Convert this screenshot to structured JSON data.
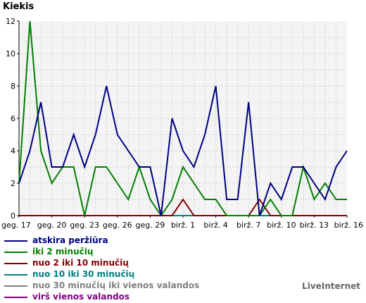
{
  "chart_data": {
    "type": "line",
    "title": "Kiekis",
    "xlabel": "",
    "ylabel": "Kiekis",
    "ylim": [
      0,
      12
    ],
    "yticks": [
      "0",
      "2",
      "4",
      "6",
      "8",
      "10",
      "12"
    ],
    "xtick_labels": [
      {
        "index": 0,
        "label": "geg. 17"
      },
      {
        "index": 3,
        "label": "geg. 20"
      },
      {
        "index": 6,
        "label": "geg. 23"
      },
      {
        "index": 9,
        "label": "geg. 26"
      },
      {
        "index": 12,
        "label": "geg. 29"
      },
      {
        "index": 15,
        "label": "birž. 1"
      },
      {
        "index": 18,
        "label": "birž. 4"
      },
      {
        "index": 21,
        "label": "birž. 7"
      },
      {
        "index": 24,
        "label": "birž. 10"
      },
      {
        "index": 27,
        "label": "birž. 13"
      },
      {
        "index": 30,
        "label": "birž. 16"
      }
    ],
    "grid": true,
    "legend_position": "bottom-left",
    "series": [
      {
        "name": "atskira peržiūra",
        "color": "#000080",
        "values": [
          2,
          4,
          7,
          3,
          3,
          5,
          3,
          5,
          8,
          5,
          4,
          3,
          3,
          0,
          6,
          4,
          3,
          5,
          8,
          1,
          1,
          7,
          0,
          2,
          1,
          3,
          3,
          2,
          1,
          3,
          4
        ]
      },
      {
        "name": "iki 2 minučių",
        "color": "#008000",
        "values": [
          2,
          12,
          4,
          2,
          3,
          3,
          0,
          3,
          3,
          2,
          1,
          3,
          1,
          0,
          1,
          3,
          2,
          1,
          1,
          0,
          0,
          0,
          0,
          1,
          0,
          0,
          3,
          1,
          2,
          1,
          1
        ]
      },
      {
        "name": "nuo 2 iki 10 minučių",
        "color": "#800000",
        "values": [
          0,
          0,
          0,
          0,
          0,
          0,
          0,
          0,
          0,
          0,
          0,
          0,
          0,
          0,
          0,
          1,
          0,
          0,
          0,
          0,
          0,
          0,
          1,
          0,
          0,
          0,
          0,
          0,
          0,
          0,
          0
        ]
      },
      {
        "name": "nuo 10 iki 30 minučių",
        "color": "#008080",
        "values": [
          0,
          0,
          0,
          0,
          0,
          0,
          0,
          0,
          0,
          0,
          0,
          0,
          0,
          0,
          0,
          0,
          0,
          0,
          0,
          0,
          0,
          0,
          0,
          0,
          0,
          0,
          0,
          0,
          0,
          0,
          0
        ]
      },
      {
        "name": "nuo 30 minučių iki vienos valandos",
        "color": "#808080",
        "values": [
          0,
          0,
          0,
          0,
          0,
          0,
          0,
          0,
          0,
          0,
          0,
          0,
          0,
          0,
          0,
          0,
          0,
          0,
          0,
          0,
          0,
          0,
          0,
          0,
          0,
          0,
          0,
          0,
          0,
          0,
          0
        ]
      },
      {
        "name": "virš vienos valandos",
        "color": "#800080",
        "values": [
          0,
          0,
          0,
          0,
          0,
          0,
          0,
          0,
          0,
          0,
          0,
          0,
          0,
          0,
          0,
          0,
          0,
          0,
          0,
          0,
          0,
          0,
          0,
          0,
          0,
          0,
          0,
          0,
          0,
          0,
          0
        ]
      }
    ]
  },
  "watermark": "LiveInternet"
}
